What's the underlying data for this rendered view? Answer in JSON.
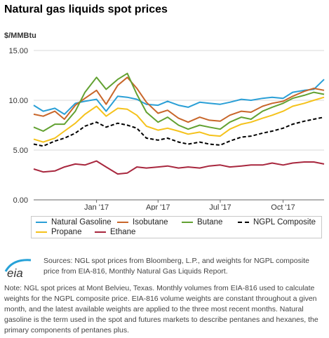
{
  "title": "Natural gas liquids spot prices",
  "unit": "$/MMBtu",
  "colors": {
    "natural_gasoline": "#2a9fd6",
    "isobutane": "#c8662a",
    "butane": "#62a131",
    "ngpl_composite": "#000000",
    "propane": "#f5c21b",
    "ethane": "#a8273e",
    "grid": "#d9d9d9",
    "axis": "#666666"
  },
  "legend": [
    {
      "name": "Natural Gasoline",
      "color_key": "natural_gasoline",
      "dashed": false
    },
    {
      "name": "Isobutane",
      "color_key": "isobutane",
      "dashed": false
    },
    {
      "name": "Butane",
      "color_key": "butane",
      "dashed": false
    },
    {
      "name": "NGPL Composite",
      "color_key": "ngpl_composite",
      "dashed": true
    },
    {
      "name": "Propane",
      "color_key": "propane",
      "dashed": false
    },
    {
      "name": "Ethane",
      "color_key": "ethane",
      "dashed": false
    }
  ],
  "logo_text": "eia",
  "sources": "Sources: NGL spot prices from Bloomberg, L.P., and weights for NGPL composite price from EIA-816, Monthly Natural Gas Liquids Report.",
  "note": "Note: NGL spot prices at Mont Belvieu, Texas. Monthly volumes from EIA-816 used to calculate weights for the NGPL composite price. EIA-816 volume weights are constant throughout a given month, and the latest available weights are applied to the three most recent months. Natural gasoline is the term used in the spot and futures markets to describe pentanes and hexanes, the primary components of pentanes plus.",
  "chart_data": {
    "type": "line",
    "ylabel": "$/MMBtu",
    "ylim": [
      0,
      15
    ],
    "yticks": [
      "0.00",
      "5.00",
      "10.00",
      "15.00"
    ],
    "x_ticks": [
      {
        "date": "2017-01-01",
        "label": "Jan '17"
      },
      {
        "date": "2017-04-01",
        "label": "Apr '17"
      },
      {
        "date": "2017-07-01",
        "label": "Jul '17"
      },
      {
        "date": "2017-10-01",
        "label": "Oct '17"
      }
    ],
    "xlim": [
      "2016-10-01",
      "2017-11-30"
    ],
    "grid": "horizontal",
    "legend_position": "bottom",
    "x": [
      "2016-10-01",
      "2016-10-15",
      "2016-11-01",
      "2016-11-15",
      "2016-12-01",
      "2016-12-15",
      "2017-01-01",
      "2017-01-15",
      "2017-02-01",
      "2017-02-15",
      "2017-03-01",
      "2017-03-15",
      "2017-04-01",
      "2017-04-15",
      "2017-05-01",
      "2017-05-15",
      "2017-06-01",
      "2017-06-15",
      "2017-07-01",
      "2017-07-15",
      "2017-08-01",
      "2017-08-15",
      "2017-09-01",
      "2017-09-15",
      "2017-10-01",
      "2017-10-15",
      "2017-11-01",
      "2017-11-15",
      "2017-11-30"
    ],
    "series": [
      {
        "name": "Natural Gasoline",
        "color_key": "natural_gasoline",
        "dashed": false,
        "values": [
          9.5,
          8.9,
          9.2,
          8.6,
          9.7,
          9.9,
          10.1,
          8.9,
          10.4,
          10.3,
          10.1,
          9.6,
          9.5,
          9.9,
          9.5,
          9.3,
          9.8,
          9.7,
          9.6,
          9.8,
          10.1,
          10.0,
          10.2,
          10.3,
          10.2,
          10.8,
          11.0,
          11.1,
          12.1
        ]
      },
      {
        "name": "Isobutane",
        "color_key": "isobutane",
        "dashed": false,
        "values": [
          8.6,
          8.4,
          8.9,
          8.1,
          9.5,
          10.2,
          11.0,
          9.6,
          11.5,
          12.3,
          11.2,
          9.8,
          8.7,
          9.0,
          8.2,
          7.8,
          8.3,
          8.0,
          7.9,
          8.5,
          8.9,
          8.8,
          9.4,
          9.7,
          9.9,
          10.4,
          10.9,
          11.2,
          11.0
        ]
      },
      {
        "name": "Butane",
        "color_key": "butane",
        "dashed": false,
        "values": [
          7.3,
          6.9,
          7.6,
          7.6,
          8.9,
          10.8,
          12.3,
          11.1,
          12.1,
          12.7,
          10.6,
          8.8,
          7.8,
          8.3,
          7.5,
          7.1,
          7.5,
          7.3,
          7.1,
          7.8,
          8.3,
          8.1,
          8.9,
          9.3,
          9.7,
          10.2,
          10.5,
          10.8,
          10.6
        ]
      },
      {
        "name": "NGPL Composite",
        "color_key": "ngpl_composite",
        "dashed": true,
        "values": [
          5.6,
          5.4,
          5.9,
          6.2,
          6.7,
          7.4,
          7.8,
          7.3,
          7.7,
          7.5,
          7.2,
          6.2,
          6.0,
          6.2,
          5.8,
          5.6,
          5.8,
          5.6,
          5.5,
          5.9,
          6.3,
          6.4,
          6.7,
          6.9,
          7.2,
          7.6,
          7.9,
          8.1,
          8.3
        ]
      },
      {
        "name": "Propane",
        "color_key": "propane",
        "dashed": false,
        "values": [
          6.1,
          5.8,
          6.2,
          6.9,
          7.7,
          8.6,
          9.4,
          8.4,
          9.2,
          9.1,
          8.5,
          7.4,
          7.0,
          7.2,
          6.9,
          6.6,
          6.8,
          6.5,
          6.4,
          7.1,
          7.6,
          7.8,
          8.2,
          8.5,
          8.9,
          9.4,
          9.7,
          10.0,
          10.3
        ]
      },
      {
        "name": "Ethane",
        "color_key": "ethane",
        "dashed": false,
        "values": [
          3.1,
          2.8,
          2.9,
          3.3,
          3.6,
          3.5,
          3.9,
          3.3,
          2.6,
          2.7,
          3.3,
          3.2,
          3.3,
          3.4,
          3.2,
          3.3,
          3.2,
          3.4,
          3.5,
          3.3,
          3.4,
          3.5,
          3.5,
          3.7,
          3.5,
          3.7,
          3.8,
          3.8,
          3.6
        ]
      }
    ]
  }
}
